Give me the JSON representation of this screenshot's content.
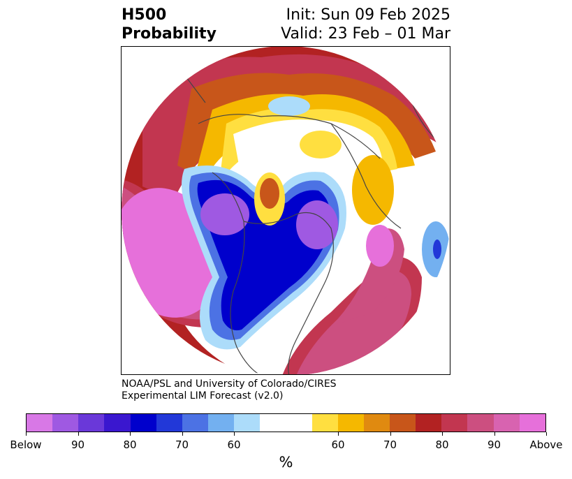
{
  "header": {
    "title_line1": "H500",
    "title_line2": "Probability",
    "init": "Init: Sun 09 Feb 2025",
    "valid": "Valid: 23 Feb – 01 Mar"
  },
  "credit": {
    "line1": "NOAA/PSL and University of Colorado/CIRES",
    "line2": "Experimental LIM Forecast (v2.0)"
  },
  "colorbar": {
    "units": "%",
    "colors": [
      "#d878e6",
      "#9f59e2",
      "#6a38d9",
      "#3a17cf",
      "#0000cc",
      "#2238d8",
      "#4c72e4",
      "#73b0f0",
      "#acdcfa",
      "#ffffff",
      "#ffffff",
      "#ffdf40",
      "#f5b800",
      "#e08a10",
      "#c8561a",
      "#b22222",
      "#c23650",
      "#cc4f80",
      "#d863b0",
      "#e670da"
    ],
    "ticks": [
      "Below",
      "90",
      "80",
      "70",
      "60",
      "60",
      "70",
      "80",
      "90",
      "Above"
    ]
  },
  "map": {
    "projection": "north-polar stereographic",
    "features": [
      "coastlines",
      "country borders",
      "US state borders"
    ],
    "palette": {
      "above_high": "#e670da",
      "above_mid": "#c23650",
      "above_low": "#b22222",
      "warm1": "#c8561a",
      "warm2": "#f5b800",
      "warm3": "#ffdf40",
      "cold1": "#acdcfa",
      "cold2": "#73b0f0",
      "cold3": "#2238d8",
      "cold4": "#0000cc",
      "cold5": "#9f59e2"
    }
  }
}
